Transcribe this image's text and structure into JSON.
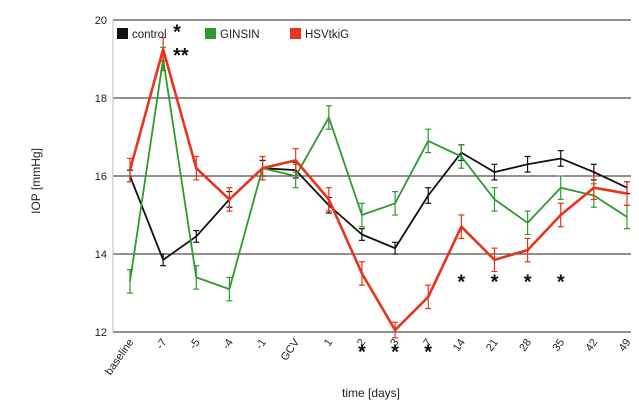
{
  "chart_data": {
    "type": "line",
    "title": "",
    "xlabel": "time [days]",
    "ylabel": "IOP [mmHg]",
    "ylim": [
      12,
      20
    ],
    "yticks": [
      12,
      14,
      16,
      18,
      20
    ],
    "grid": "horizontal",
    "legend_position": "top-left",
    "categories": [
      "baseline",
      "-7",
      "-5",
      "-4",
      "-1",
      "GCV",
      "1",
      "2",
      "3",
      "7",
      "14",
      "21",
      "28",
      "35",
      "42",
      "49"
    ],
    "series": [
      {
        "name": "control",
        "color": "#111111",
        "values": [
          16.0,
          13.85,
          14.45,
          15.4,
          16.2,
          16.15,
          15.25,
          14.5,
          14.15,
          15.5,
          16.6,
          16.1,
          16.3,
          16.45,
          16.1,
          15.7
        ],
        "errors": [
          0.15,
          0.15,
          0.15,
          0.2,
          0.2,
          0.2,
          0.2,
          0.15,
          0.15,
          0.2,
          0.2,
          0.2,
          0.2,
          0.2,
          0.2,
          0.15
        ]
      },
      {
        "name": "GINSIN",
        "color": "#2e9a2e",
        "values": [
          13.3,
          19.0,
          13.4,
          13.1,
          16.2,
          16.0,
          17.5,
          15.0,
          15.3,
          16.9,
          16.5,
          15.4,
          14.8,
          15.7,
          15.5,
          14.95
        ],
        "errors": [
          0.3,
          0.3,
          0.3,
          0.3,
          0.3,
          0.3,
          0.3,
          0.3,
          0.3,
          0.3,
          0.3,
          0.3,
          0.3,
          0.3,
          0.3,
          0.3
        ]
      },
      {
        "name": "HSVtkiG",
        "color": "#e8341c",
        "values": [
          16.15,
          19.25,
          16.2,
          15.4,
          16.2,
          16.4,
          15.4,
          13.5,
          12.05,
          12.9,
          14.7,
          13.85,
          14.1,
          15.0,
          15.7,
          15.55
        ],
        "errors": [
          0.3,
          0.3,
          0.3,
          0.3,
          0.3,
          0.3,
          0.3,
          0.3,
          0.2,
          0.3,
          0.3,
          0.3,
          0.3,
          0.3,
          0.3,
          0.3
        ]
      }
    ],
    "annotations": [
      {
        "text": "*",
        "x": "-7",
        "y": 19.7
      },
      {
        "text": "**",
        "x": "-7",
        "y": 19.1
      },
      {
        "text": "*",
        "x": "2",
        "y": 11.5
      },
      {
        "text": "*",
        "x": "3",
        "y": 11.5
      },
      {
        "text": "*",
        "x": "7",
        "y": 11.5
      },
      {
        "text": "*",
        "x": "14",
        "y": 13.3
      },
      {
        "text": "*",
        "x": "21",
        "y": 13.3
      },
      {
        "text": "*",
        "x": "28",
        "y": 13.3
      },
      {
        "text": "*",
        "x": "35",
        "y": 13.3
      }
    ]
  }
}
